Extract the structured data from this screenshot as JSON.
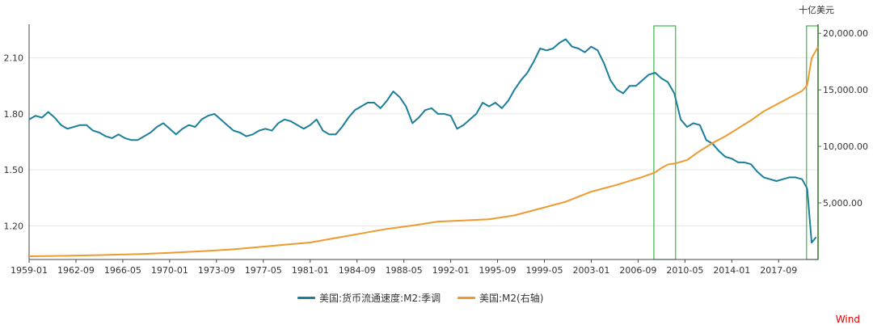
{
  "chart_data": {
    "type": "line",
    "right_axis_unit": "十亿美元",
    "x_ticks": [
      "1959-01",
      "1962-09",
      "1966-05",
      "1970-01",
      "1973-09",
      "1977-05",
      "1981-01",
      "1984-09",
      "1988-05",
      "1992-01",
      "1995-09",
      "1999-05",
      "2003-01",
      "2006-09",
      "2010-05",
      "2014-01",
      "2017-09"
    ],
    "left_axis": {
      "ticks": [
        "1.20",
        "1.50",
        "1.80",
        "2.10"
      ],
      "range": [
        1.02,
        2.28
      ]
    },
    "right_axis": {
      "ticks": [
        "5,000.00",
        "10,000.00",
        "15,000.00",
        "20,000.00"
      ],
      "range": [
        0,
        20800
      ]
    },
    "x_range": [
      1959.0,
      2020.75
    ],
    "highlight_regions": [
      {
        "start": 2007.9,
        "end": 2009.6,
        "color": "#3cb44b"
      },
      {
        "start": 2019.85,
        "end": 2020.75,
        "color": "#3cb44b"
      }
    ],
    "series": [
      {
        "name": "美国:货币流通速度:M2:季调",
        "color": "#1b7f9b",
        "axis": "left",
        "points": [
          [
            1959.0,
            1.77
          ],
          [
            1959.5,
            1.79
          ],
          [
            1960.0,
            1.78
          ],
          [
            1960.5,
            1.81
          ],
          [
            1961.0,
            1.78
          ],
          [
            1961.5,
            1.74
          ],
          [
            1962.0,
            1.72
          ],
          [
            1962.5,
            1.73
          ],
          [
            1963.0,
            1.74
          ],
          [
            1963.5,
            1.74
          ],
          [
            1964.0,
            1.71
          ],
          [
            1964.5,
            1.7
          ],
          [
            1965.0,
            1.68
          ],
          [
            1965.5,
            1.67
          ],
          [
            1966.0,
            1.69
          ],
          [
            1966.5,
            1.67
          ],
          [
            1967.0,
            1.66
          ],
          [
            1967.5,
            1.66
          ],
          [
            1968.0,
            1.68
          ],
          [
            1968.5,
            1.7
          ],
          [
            1969.0,
            1.73
          ],
          [
            1969.5,
            1.75
          ],
          [
            1970.0,
            1.72
          ],
          [
            1970.5,
            1.69
          ],
          [
            1971.0,
            1.72
          ],
          [
            1971.5,
            1.74
          ],
          [
            1972.0,
            1.73
          ],
          [
            1972.5,
            1.77
          ],
          [
            1973.0,
            1.79
          ],
          [
            1973.5,
            1.8
          ],
          [
            1974.0,
            1.77
          ],
          [
            1974.5,
            1.74
          ],
          [
            1975.0,
            1.71
          ],
          [
            1975.5,
            1.7
          ],
          [
            1976.0,
            1.68
          ],
          [
            1976.5,
            1.69
          ],
          [
            1977.0,
            1.71
          ],
          [
            1977.5,
            1.72
          ],
          [
            1978.0,
            1.71
          ],
          [
            1978.5,
            1.75
          ],
          [
            1979.0,
            1.77
          ],
          [
            1979.5,
            1.76
          ],
          [
            1980.0,
            1.74
          ],
          [
            1980.5,
            1.72
          ],
          [
            1981.0,
            1.74
          ],
          [
            1981.5,
            1.77
          ],
          [
            1982.0,
            1.71
          ],
          [
            1982.5,
            1.69
          ],
          [
            1983.0,
            1.69
          ],
          [
            1983.5,
            1.73
          ],
          [
            1984.0,
            1.78
          ],
          [
            1984.5,
            1.82
          ],
          [
            1985.0,
            1.84
          ],
          [
            1985.5,
            1.86
          ],
          [
            1986.0,
            1.86
          ],
          [
            1986.5,
            1.83
          ],
          [
            1987.0,
            1.87
          ],
          [
            1987.5,
            1.92
          ],
          [
            1988.0,
            1.89
          ],
          [
            1988.5,
            1.84
          ],
          [
            1989.0,
            1.75
          ],
          [
            1989.5,
            1.78
          ],
          [
            1990.0,
            1.82
          ],
          [
            1990.5,
            1.83
          ],
          [
            1991.0,
            1.8
          ],
          [
            1991.5,
            1.8
          ],
          [
            1992.0,
            1.79
          ],
          [
            1992.5,
            1.72
          ],
          [
            1993.0,
            1.74
          ],
          [
            1993.5,
            1.77
          ],
          [
            1994.0,
            1.8
          ],
          [
            1994.5,
            1.86
          ],
          [
            1995.0,
            1.84
          ],
          [
            1995.5,
            1.86
          ],
          [
            1996.0,
            1.83
          ],
          [
            1996.5,
            1.87
          ],
          [
            1997.0,
            1.93
          ],
          [
            1997.5,
            1.98
          ],
          [
            1998.0,
            2.02
          ],
          [
            1998.5,
            2.08
          ],
          [
            1999.0,
            2.15
          ],
          [
            1999.5,
            2.14
          ],
          [
            2000.0,
            2.15
          ],
          [
            2000.5,
            2.18
          ],
          [
            2001.0,
            2.2
          ],
          [
            2001.5,
            2.16
          ],
          [
            2002.0,
            2.15
          ],
          [
            2002.5,
            2.13
          ],
          [
            2003.0,
            2.16
          ],
          [
            2003.5,
            2.14
          ],
          [
            2004.0,
            2.07
          ],
          [
            2004.5,
            1.98
          ],
          [
            2005.0,
            1.93
          ],
          [
            2005.5,
            1.91
          ],
          [
            2006.0,
            1.95
          ],
          [
            2006.5,
            1.95
          ],
          [
            2007.0,
            1.98
          ],
          [
            2007.5,
            2.01
          ],
          [
            2008.0,
            2.02
          ],
          [
            2008.5,
            1.99
          ],
          [
            2009.0,
            1.97
          ],
          [
            2009.5,
            1.91
          ],
          [
            2010.0,
            1.77
          ],
          [
            2010.5,
            1.73
          ],
          [
            2011.0,
            1.75
          ],
          [
            2011.5,
            1.74
          ],
          [
            2012.0,
            1.66
          ],
          [
            2012.5,
            1.64
          ],
          [
            2013.0,
            1.6
          ],
          [
            2013.5,
            1.57
          ],
          [
            2014.0,
            1.56
          ],
          [
            2014.5,
            1.54
          ],
          [
            2015.0,
            1.54
          ],
          [
            2015.5,
            1.53
          ],
          [
            2016.0,
            1.49
          ],
          [
            2016.5,
            1.46
          ],
          [
            2017.0,
            1.45
          ],
          [
            2017.5,
            1.44
          ],
          [
            2018.0,
            1.45
          ],
          [
            2018.5,
            1.46
          ],
          [
            2019.0,
            1.46
          ],
          [
            2019.5,
            1.45
          ],
          [
            2019.9,
            1.4
          ],
          [
            2020.25,
            1.11
          ],
          [
            2020.6,
            1.14
          ]
        ]
      },
      {
        "name": "美国:M2(右轴)",
        "color": "#ee9a2f",
        "axis": "right",
        "points": [
          [
            1959.0,
            287
          ],
          [
            1962.0,
            330
          ],
          [
            1965.0,
            400
          ],
          [
            1968.0,
            490
          ],
          [
            1970.0,
            590
          ],
          [
            1973.0,
            760
          ],
          [
            1975.0,
            900
          ],
          [
            1977.0,
            1100
          ],
          [
            1979.0,
            1300
          ],
          [
            1981.0,
            1500
          ],
          [
            1983.0,
            1900
          ],
          [
            1985.0,
            2300
          ],
          [
            1987.0,
            2700
          ],
          [
            1989.0,
            3000
          ],
          [
            1991.0,
            3350
          ],
          [
            1993.0,
            3450
          ],
          [
            1995.0,
            3550
          ],
          [
            1997.0,
            3900
          ],
          [
            1999.0,
            4500
          ],
          [
            2001.0,
            5100
          ],
          [
            2003.0,
            6000
          ],
          [
            2005.0,
            6600
          ],
          [
            2007.0,
            7300
          ],
          [
            2008.0,
            7700
          ],
          [
            2008.5,
            8100
          ],
          [
            2009.0,
            8400
          ],
          [
            2009.6,
            8500
          ],
          [
            2010.5,
            8800
          ],
          [
            2011.5,
            9600
          ],
          [
            2012.5,
            10300
          ],
          [
            2013.5,
            10900
          ],
          [
            2014.5,
            11600
          ],
          [
            2015.5,
            12300
          ],
          [
            2016.5,
            13100
          ],
          [
            2017.5,
            13700
          ],
          [
            2018.5,
            14300
          ],
          [
            2019.5,
            14900
          ],
          [
            2019.9,
            15400
          ],
          [
            2020.25,
            17800
          ],
          [
            2020.75,
            18800
          ]
        ]
      }
    ]
  },
  "brand": "Wind"
}
